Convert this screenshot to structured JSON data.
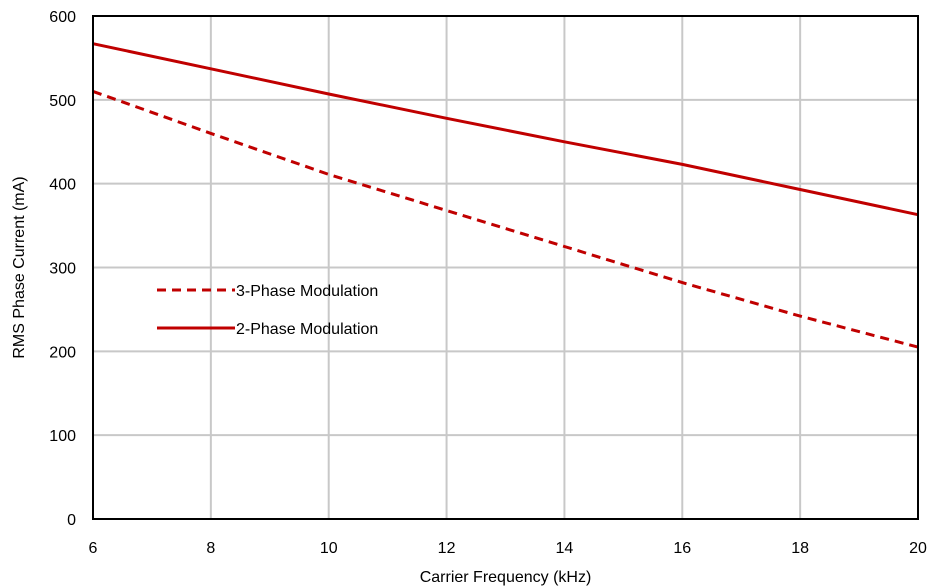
{
  "chart_data": {
    "type": "line",
    "title": "",
    "xlabel": "Carrier Frequency (kHz)",
    "ylabel": "RMS Phase Current (mA)",
    "xlim": [
      6,
      20
    ],
    "ylim": [
      0,
      600
    ],
    "xticks": [
      6,
      8,
      10,
      12,
      14,
      16,
      18,
      20
    ],
    "yticks": [
      0,
      100,
      200,
      300,
      400,
      500,
      600
    ],
    "grid": true,
    "legend_position": "left-middle",
    "series": [
      {
        "name": "3-Phase Modulation",
        "style": "dashed",
        "color": "#c00000",
        "x": [
          6,
          8,
          10,
          12,
          14,
          16,
          18,
          20
        ],
        "y": [
          510,
          460,
          411,
          368,
          325,
          282,
          242,
          205
        ]
      },
      {
        "name": "2-Phase Modulation",
        "style": "solid",
        "color": "#c00000",
        "x": [
          6,
          8,
          10,
          12,
          14,
          16,
          18,
          20
        ],
        "y": [
          567,
          537,
          507,
          478,
          450,
          423,
          393,
          363
        ]
      }
    ]
  }
}
